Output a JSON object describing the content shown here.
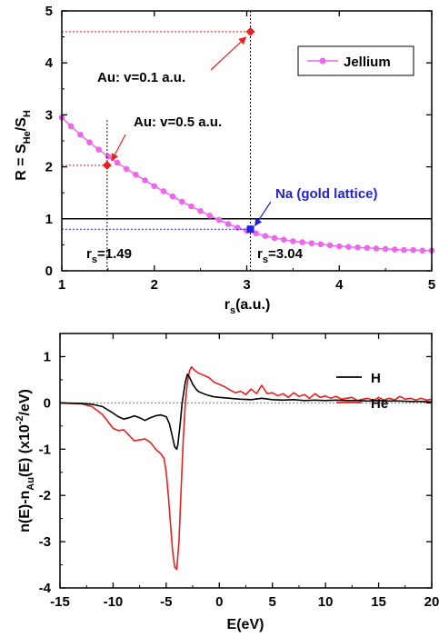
{
  "chart_data": [
    {
      "type": "line",
      "ylabel": {
        "main": "R = S",
        "sub1": "He",
        "mid": "/S",
        "sub2": "H"
      },
      "xlabel": {
        "main": "r",
        "sub": "s",
        "suffix": "(a.u.)"
      },
      "xlim": [
        1,
        5
      ],
      "ylim": [
        0,
        5
      ],
      "xticks": [
        "1",
        "2",
        "3",
        "4",
        "5"
      ],
      "yticks": [
        "0",
        "1",
        "2",
        "3",
        "4",
        "5"
      ],
      "legend": {
        "position": "top-right",
        "label": "Jellium",
        "color": "#ee66ee"
      },
      "series": [
        {
          "name": "Jellium",
          "color": "#ee66ee",
          "marker": "circle",
          "x": [
            1.0,
            1.1,
            1.2,
            1.3,
            1.4,
            1.5,
            1.6,
            1.7,
            1.8,
            1.9,
            2.0,
            2.1,
            2.2,
            2.3,
            2.4,
            2.5,
            2.6,
            2.7,
            2.8,
            2.9,
            3.0,
            3.1,
            3.2,
            3.3,
            3.4,
            3.5,
            3.6,
            3.7,
            3.8,
            3.9,
            4.0,
            4.1,
            4.2,
            4.3,
            4.4,
            4.5,
            4.6,
            4.7,
            4.8,
            4.9,
            5.0
          ],
          "y": [
            2.95,
            2.78,
            2.62,
            2.47,
            2.33,
            2.2,
            2.08,
            1.96,
            1.85,
            1.74,
            1.63,
            1.53,
            1.43,
            1.33,
            1.24,
            1.15,
            1.06,
            0.98,
            0.9,
            0.83,
            0.77,
            0.72,
            0.67,
            0.63,
            0.6,
            0.57,
            0.55,
            0.53,
            0.51,
            0.49,
            0.47,
            0.46,
            0.45,
            0.44,
            0.43,
            0.42,
            0.41,
            0.4,
            0.4,
            0.39,
            0.39
          ]
        }
      ],
      "reference_line_y": 1,
      "points": [
        {
          "label": "Au: v=0.1 a.u.",
          "x": 3.04,
          "y": 4.6,
          "color": "#e82020"
        },
        {
          "label": "Au: v=0.5 a.u.",
          "x": 1.49,
          "y": 2.03,
          "color": "#e82020"
        },
        {
          "label": "Na (gold lattice)",
          "x": 3.04,
          "y": 0.8,
          "color": "#2222dd"
        }
      ],
      "annotations": [
        {
          "main": "r",
          "sub": "s",
          "suffix": "=1.49"
        },
        {
          "main": "r",
          "sub": "s",
          "suffix": "=3.04"
        }
      ]
    },
    {
      "type": "line",
      "ylabel": "n(E)-n_Au(E) (x10^-2/eV)",
      "ylabel_parts": {
        "p1": "n(E)-n",
        "sub": "Au",
        "p2": "(E) (x10",
        "sup": "-2",
        "p3": "/eV)"
      },
      "xlabel": "E(eV)",
      "xlim": [
        -15,
        20
      ],
      "ylim": [
        -4,
        1.5
      ],
      "xticks": [
        "-15",
        "-10",
        "-5",
        "0",
        "5",
        "10",
        "15",
        "20"
      ],
      "yticks": [
        "-4",
        "-3",
        "-2",
        "-1",
        "0",
        "1"
      ],
      "legend": {
        "position": "top-right"
      },
      "series": [
        {
          "name": "H",
          "color": "#000000",
          "x": [
            -15,
            -13,
            -12,
            -11,
            -10.5,
            -10,
            -9.5,
            -9,
            -8.5,
            -8,
            -7.5,
            -7,
            -6.5,
            -6,
            -5.5,
            -5,
            -4.7,
            -4.4,
            -4.2,
            -4.0,
            -3.9,
            -3.7,
            -3.5,
            -3.2,
            -3.0,
            -2.8,
            -2.5,
            -2.2,
            -2.0,
            -1.5,
            -1.0,
            -0.5,
            0,
            1,
            2,
            3,
            4,
            5,
            6,
            7,
            8,
            9,
            10,
            11,
            12,
            13,
            14,
            15,
            16,
            17,
            18,
            19,
            20
          ],
          "y": [
            0,
            -0.01,
            -0.03,
            -0.08,
            -0.15,
            -0.22,
            -0.3,
            -0.35,
            -0.32,
            -0.28,
            -0.32,
            -0.38,
            -0.32,
            -0.28,
            -0.26,
            -0.3,
            -0.45,
            -0.75,
            -0.95,
            -1.0,
            -0.9,
            -0.5,
            0.0,
            0.45,
            0.62,
            0.55,
            0.4,
            0.3,
            0.25,
            0.2,
            0.16,
            0.13,
            0.12,
            0.1,
            0.08,
            0.07,
            0.1,
            0.07,
            0.06,
            0.07,
            0.05,
            0.06,
            0.05,
            0.06,
            0.05,
            0.05,
            0.04,
            0.05,
            0.04,
            0.04,
            0.03,
            0.03,
            0.02
          ]
        },
        {
          "name": "He",
          "color": "#e82020",
          "x": [
            -15,
            -13,
            -12,
            -11,
            -10.5,
            -10,
            -9.5,
            -9,
            -8.5,
            -8,
            -7.5,
            -7,
            -6.5,
            -6,
            -5.5,
            -5.2,
            -5.0,
            -4.8,
            -4.6,
            -4.4,
            -4.2,
            -4.0,
            -3.8,
            -3.6,
            -3.4,
            -3.2,
            -3.0,
            -2.8,
            -2.6,
            -2.4,
            -2.0,
            -1.5,
            -1.0,
            -0.5,
            0,
            0.5,
            1,
            1.5,
            2,
            2.5,
            3,
            3.5,
            4,
            4.5,
            5,
            5.5,
            6,
            6.5,
            7,
            7.5,
            8,
            8.5,
            9,
            9.5,
            10,
            10.5,
            11,
            11.5,
            12,
            12.5,
            13,
            13.5,
            14,
            14.5,
            15,
            15.5,
            16,
            16.5,
            17,
            17.5,
            18,
            18.5,
            19,
            19.5,
            20
          ],
          "y": [
            0,
            -0.02,
            -0.08,
            -0.25,
            -0.4,
            -0.55,
            -0.6,
            -0.58,
            -0.7,
            -0.82,
            -0.8,
            -0.78,
            -0.85,
            -1.0,
            -1.1,
            -1.2,
            -1.5,
            -2.0,
            -2.6,
            -3.2,
            -3.55,
            -3.6,
            -3.0,
            -1.9,
            -0.8,
            0.0,
            0.45,
            0.7,
            0.78,
            0.72,
            0.65,
            0.6,
            0.55,
            0.45,
            0.4,
            0.35,
            0.28,
            0.22,
            0.25,
            0.18,
            0.3,
            0.2,
            0.38,
            0.2,
            0.22,
            0.15,
            0.2,
            0.12,
            0.22,
            0.14,
            0.18,
            0.1,
            0.2,
            0.12,
            0.15,
            0.1,
            0.14,
            0.08,
            0.1,
            0.12,
            0.05,
            0.08,
            0.1,
            0.05,
            0.12,
            0.06,
            0.1,
            0.06,
            0.14,
            0.08,
            0.1,
            0.06,
            0.1,
            0.06,
            0.08
          ]
        }
      ],
      "reference_line_y": 0,
      "reference_line_color": "#22cc22"
    }
  ]
}
